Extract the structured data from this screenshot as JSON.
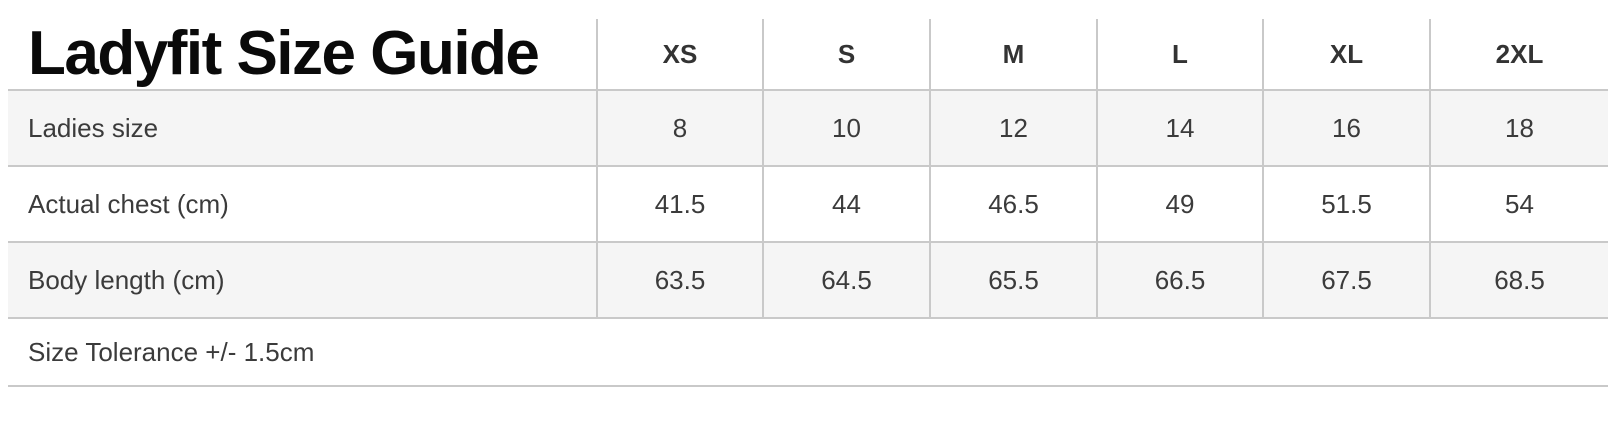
{
  "title": "Ladyfit Size Guide",
  "table": {
    "columns": [
      "XS",
      "S",
      "M",
      "L",
      "XL",
      "2XL"
    ],
    "rows": [
      {
        "label": "Ladies size",
        "values": [
          "8",
          "10",
          "12",
          "14",
          "16",
          "18"
        ]
      },
      {
        "label": "Actual chest (cm)",
        "values": [
          "41.5",
          "44",
          "46.5",
          "49",
          "51.5",
          "54"
        ]
      },
      {
        "label": "Body length (cm)",
        "values": [
          "63.5",
          "64.5",
          "65.5",
          "66.5",
          "67.5",
          "68.5"
        ]
      }
    ],
    "footer_note": "Size Tolerance +/- 1.5cm"
  },
  "colors": {
    "stripe_row": "#f5f5f5",
    "border": "#c9c9c9",
    "body_text": "#3b3b3b",
    "header_text": "#333333",
    "title_text": "#0a0a0a",
    "background": "#ffffff"
  }
}
